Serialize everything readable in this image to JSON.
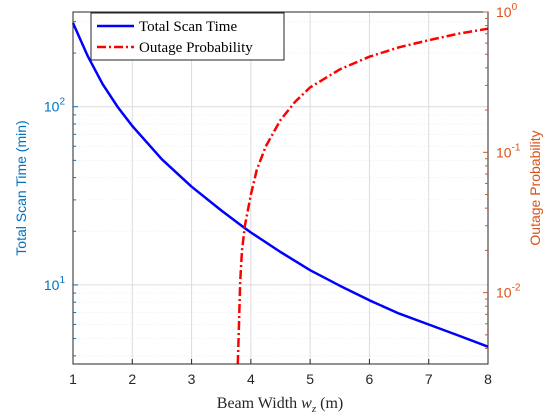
{
  "chart_data": {
    "type": "line",
    "x": [
      1,
      1.25,
      1.5,
      1.75,
      2,
      2.5,
      3,
      3.5,
      3.9,
      4,
      4.5,
      5,
      5.5,
      6,
      6.5,
      7,
      7.5,
      8
    ],
    "series": [
      {
        "name": "Total Scan Time",
        "axis": "left",
        "style": "solid",
        "color": "#0000ff",
        "values": [
          295,
          192,
          134,
          100,
          77.9,
          50.7,
          35.6,
          26.2,
          20.8,
          19.7,
          15.3,
          12.1,
          9.9,
          8.2,
          6.9,
          6.0,
          5.2,
          4.5
        ]
      },
      {
        "name": "Outage Probability",
        "axis": "right",
        "style": "dashdot",
        "color": "#ff0000",
        "x": [
          3.78,
          3.8,
          3.82,
          3.85,
          3.9,
          4.0,
          4.1,
          4.25,
          4.5,
          4.75,
          5.0,
          5.5,
          6.0,
          6.5,
          7.0,
          7.5,
          8.0
        ],
        "values": [
          0.003,
          0.006,
          0.012,
          0.02,
          0.03,
          0.05,
          0.075,
          0.11,
          0.17,
          0.23,
          0.29,
          0.39,
          0.48,
          0.56,
          0.63,
          0.7,
          0.76
        ]
      }
    ],
    "xlabel": "Beam Width w_z (m)",
    "xlabel_parts": {
      "main": "Beam Width ",
      "var": "w",
      "sub": "z",
      "unit": " (m)"
    },
    "ylabel_left": "Total Scan Time (min)",
    "ylabel_right": "Outage Probability",
    "xlim": [
      1,
      8
    ],
    "ylim_left": [
      3.6,
      340
    ],
    "ylim_right": [
      0.0031,
      1
    ],
    "yscale": "log",
    "xticks": [
      1,
      2,
      3,
      4,
      5,
      6,
      7,
      8
    ],
    "xtick_labels": [
      "1",
      "2",
      "3",
      "4",
      "5",
      "6",
      "7",
      "8"
    ],
    "left_ticks": [
      {
        "value": 10,
        "base": "10",
        "exp": "1"
      },
      {
        "value": 100,
        "base": "10",
        "exp": "2"
      }
    ],
    "right_ticks": [
      {
        "value": 0.01,
        "base": "10",
        "exp": "-2"
      },
      {
        "value": 0.1,
        "base": "10",
        "exp": "-1"
      },
      {
        "value": 1,
        "base": "10",
        "exp": "0"
      }
    ],
    "grid": true,
    "legend_position": "top-left",
    "colors": {
      "left_axis": "#0072bd",
      "right_axis": "#d95319",
      "grid": "#dcdcdc",
      "axis": "#262626"
    }
  }
}
